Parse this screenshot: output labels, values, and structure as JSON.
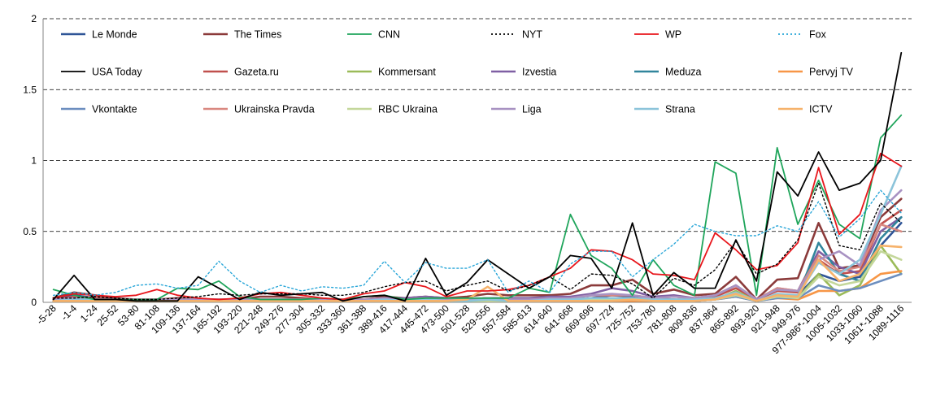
{
  "chart_data": {
    "type": "line",
    "title": "",
    "xlabel": "",
    "ylabel": "",
    "ylim": [
      0,
      2
    ],
    "yticks": [
      "0",
      "0.5",
      "1",
      "1.5",
      "2"
    ],
    "grid": "horizontal dashed",
    "legend_placement": "top",
    "categories": [
      "-5-28",
      "-1-4",
      "1-24",
      "25-52",
      "53-80",
      "81-108",
      "109-136",
      "137-164",
      "165-192",
      "193-220",
      "221-248",
      "249-276",
      "277-304",
      "305-332",
      "333-360",
      "361-388",
      "389-416",
      "417-444",
      "445-472",
      "473-500",
      "501-528",
      "529-556",
      "557-584",
      "585-613",
      "614-640",
      "641-668",
      "669-696",
      "697-724",
      "725-752",
      "753-780",
      "781-808",
      "809-836",
      "837-864",
      "865-892",
      "893-920",
      "921-948",
      "949-976",
      "977-986*-1004",
      "1005-1032",
      "1033-1060",
      "1061*-1088",
      "1089-1116"
    ],
    "series": [
      {
        "name": "Le Monde",
        "color": "#2F5597",
        "dash": "solid",
        "width": 2.6,
        "values": [
          0.02,
          0.05,
          0.03,
          0.01,
          0.01,
          0.01,
          0.02,
          0.01,
          0.01,
          0.01,
          0.02,
          0.02,
          0.01,
          0.01,
          0.01,
          0.01,
          0.02,
          0.01,
          0.02,
          0.01,
          0.01,
          0.02,
          0.01,
          0.01,
          0.01,
          0.02,
          0.03,
          0.05,
          0.04,
          0.02,
          0.02,
          0.01,
          0.02,
          0.05,
          0.01,
          0.05,
          0.05,
          0.2,
          0.15,
          0.18,
          0.4,
          0.56
        ]
      },
      {
        "name": "The Times",
        "color": "#8B3A3A",
        "dash": "solid",
        "width": 2.6,
        "values": [
          0.03,
          0.07,
          0.05,
          0.03,
          0.02,
          0.02,
          0.03,
          0.02,
          0.02,
          0.02,
          0.04,
          0.04,
          0.03,
          0.02,
          0.02,
          0.02,
          0.04,
          0.03,
          0.04,
          0.03,
          0.04,
          0.06,
          0.05,
          0.05,
          0.05,
          0.06,
          0.12,
          0.12,
          0.16,
          0.06,
          0.09,
          0.05,
          0.06,
          0.18,
          0.02,
          0.16,
          0.17,
          0.56,
          0.24,
          0.26,
          0.6,
          0.73
        ]
      },
      {
        "name": "CNN",
        "color": "#1FA55B",
        "dash": "solid",
        "width": 1.8,
        "values": [
          0.09,
          0.05,
          0.02,
          0.02,
          0.02,
          0.02,
          0.1,
          0.09,
          0.15,
          0.04,
          0.02,
          0.02,
          0.02,
          0.03,
          0.02,
          0.04,
          0.05,
          0.02,
          0.03,
          0.03,
          0.03,
          0.03,
          0.03,
          0.1,
          0.07,
          0.62,
          0.33,
          0.24,
          0.05,
          0.3,
          0.12,
          0.05,
          0.99,
          0.91,
          0.05,
          1.09,
          0.55,
          0.86,
          0.55,
          0.45,
          1.16,
          1.32
        ]
      },
      {
        "name": "NYT",
        "color": "#000000",
        "dash": "2,3",
        "width": 1.4,
        "values": [
          0.03,
          0.03,
          0.04,
          0.03,
          0.02,
          0.02,
          0.03,
          0.04,
          0.06,
          0.05,
          0.06,
          0.06,
          0.06,
          0.05,
          0.05,
          0.07,
          0.11,
          0.14,
          0.15,
          0.08,
          0.12,
          0.15,
          0.08,
          0.12,
          0.18,
          0.09,
          0.2,
          0.19,
          0.13,
          0.03,
          0.17,
          0.12,
          0.23,
          0.43,
          0.2,
          0.27,
          0.44,
          0.84,
          0.4,
          0.37,
          0.7,
          0.56
        ]
      },
      {
        "name": "WP",
        "color": "#E8161C",
        "dash": "solid",
        "width": 1.8,
        "values": [
          0.03,
          0.06,
          0.05,
          0.04,
          0.05,
          0.09,
          0.05,
          0.03,
          0.02,
          0.03,
          0.06,
          0.07,
          0.05,
          0.03,
          0.02,
          0.06,
          0.08,
          0.14,
          0.11,
          0.04,
          0.08,
          0.08,
          0.09,
          0.12,
          0.18,
          0.24,
          0.37,
          0.36,
          0.3,
          0.2,
          0.19,
          0.16,
          0.49,
          0.37,
          0.23,
          0.26,
          0.42,
          0.95,
          0.48,
          0.62,
          1.05,
          0.96
        ]
      },
      {
        "name": "Fox",
        "color": "#29A6D8",
        "dash": "2,3",
        "width": 1.4,
        "values": [
          0.05,
          0.07,
          0.05,
          0.07,
          0.12,
          0.13,
          0.1,
          0.12,
          0.29,
          0.15,
          0.07,
          0.12,
          0.08,
          0.11,
          0.1,
          0.12,
          0.29,
          0.14,
          0.28,
          0.24,
          0.24,
          0.3,
          0.07,
          0.15,
          0.07,
          0.27,
          0.36,
          0.36,
          0.18,
          0.3,
          0.41,
          0.55,
          0.5,
          0.47,
          0.47,
          0.54,
          0.5,
          0.71,
          0.46,
          0.59,
          0.79,
          0.63
        ]
      },
      {
        "name": "USA Today",
        "color": "#000000",
        "dash": "solid",
        "width": 1.8,
        "values": [
          0.02,
          0.19,
          0.02,
          0.02,
          0.01,
          0.01,
          0.01,
          0.18,
          0.1,
          0.02,
          0.07,
          0.05,
          0.06,
          0.07,
          0.01,
          0.04,
          0.05,
          0.01,
          0.31,
          0.05,
          0.14,
          0.3,
          0.2,
          0.1,
          0.18,
          0.33,
          0.31,
          0.1,
          0.56,
          0.05,
          0.21,
          0.1,
          0.1,
          0.44,
          0.15,
          0.92,
          0.75,
          1.06,
          0.79,
          0.84,
          1.0,
          1.76
        ]
      },
      {
        "name": "Gazeta.ru",
        "color": "#C0504D",
        "dash": "solid",
        "width": 2.6,
        "values": [
          0.02,
          0.04,
          0.03,
          0.02,
          0.02,
          0.02,
          0.02,
          0.02,
          0.02,
          0.01,
          0.02,
          0.02,
          0.02,
          0.02,
          0.01,
          0.02,
          0.03,
          0.02,
          0.03,
          0.02,
          0.02,
          0.03,
          0.02,
          0.02,
          0.03,
          0.03,
          0.05,
          0.05,
          0.05,
          0.03,
          0.04,
          0.03,
          0.04,
          0.1,
          0.02,
          0.08,
          0.07,
          0.3,
          0.2,
          0.22,
          0.55,
          0.65
        ]
      },
      {
        "name": "Kommersant",
        "color": "#9BBB59",
        "dash": "solid",
        "width": 2.6,
        "values": [
          0.01,
          0.02,
          0.02,
          0.01,
          0.01,
          0.01,
          0.01,
          0.01,
          0.01,
          0.01,
          0.01,
          0.01,
          0.01,
          0.01,
          0.01,
          0.01,
          0.01,
          0.01,
          0.01,
          0.01,
          0.01,
          0.01,
          0.01,
          0.01,
          0.01,
          0.01,
          0.02,
          0.02,
          0.02,
          0.01,
          0.01,
          0.01,
          0.02,
          0.08,
          0.01,
          0.04,
          0.03,
          0.2,
          0.05,
          0.12,
          0.4,
          0.2
        ]
      },
      {
        "name": "Izvestia",
        "color": "#7F5FA3",
        "dash": "solid",
        "width": 2.6,
        "values": [
          0.02,
          0.03,
          0.02,
          0.02,
          0.01,
          0.01,
          0.02,
          0.02,
          0.02,
          0.01,
          0.02,
          0.02,
          0.02,
          0.02,
          0.01,
          0.02,
          0.03,
          0.03,
          0.04,
          0.03,
          0.02,
          0.03,
          0.03,
          0.03,
          0.04,
          0.04,
          0.06,
          0.1,
          0.08,
          0.04,
          0.05,
          0.03,
          0.05,
          0.12,
          0.02,
          0.1,
          0.08,
          0.36,
          0.25,
          0.2,
          0.5,
          0.6
        ]
      },
      {
        "name": "Meduza",
        "color": "#31859C",
        "dash": "solid",
        "width": 2.6,
        "values": [
          0.01,
          0.02,
          0.02,
          0.01,
          0.01,
          0.01,
          0.01,
          0.01,
          0.01,
          0.01,
          0.01,
          0.01,
          0.01,
          0.01,
          0.01,
          0.01,
          0.02,
          0.01,
          0.02,
          0.01,
          0.01,
          0.02,
          0.01,
          0.01,
          0.02,
          0.02,
          0.03,
          0.03,
          0.03,
          0.02,
          0.02,
          0.02,
          0.03,
          0.06,
          0.01,
          0.05,
          0.04,
          0.42,
          0.2,
          0.15,
          0.45,
          0.6
        ]
      },
      {
        "name": "Pervyj TV",
        "color": "#F79646",
        "dash": "solid",
        "width": 2.6,
        "values": [
          0.01,
          0.01,
          0.01,
          0.01,
          0.01,
          0.01,
          0.01,
          0.01,
          0.01,
          0.01,
          0.01,
          0.01,
          0.01,
          0.01,
          0.01,
          0.01,
          0.01,
          0.01,
          0.01,
          0.01,
          0.02,
          0.01,
          0.01,
          0.01,
          0.01,
          0.01,
          0.01,
          0.01,
          0.01,
          0.01,
          0.01,
          0.01,
          0.02,
          0.04,
          0.01,
          0.03,
          0.02,
          0.08,
          0.08,
          0.1,
          0.2,
          0.22
        ]
      },
      {
        "name": "Vkontakte",
        "color": "#6C8EBF",
        "dash": "solid",
        "width": 2.6,
        "values": [
          0.01,
          0.02,
          0.01,
          0.01,
          0.01,
          0.01,
          0.01,
          0.01,
          0.01,
          0.01,
          0.01,
          0.01,
          0.01,
          0.01,
          0.01,
          0.01,
          0.01,
          0.01,
          0.02,
          0.01,
          0.01,
          0.02,
          0.01,
          0.01,
          0.01,
          0.01,
          0.02,
          0.02,
          0.02,
          0.01,
          0.01,
          0.01,
          0.02,
          0.04,
          0.01,
          0.03,
          0.03,
          0.12,
          0.08,
          0.1,
          0.15,
          0.2
        ]
      },
      {
        "name": "Ukrainska Pravda",
        "color": "#D98880",
        "dash": "solid",
        "width": 2.6,
        "values": [
          0.02,
          0.03,
          0.02,
          0.02,
          0.02,
          0.02,
          0.02,
          0.02,
          0.02,
          0.02,
          0.02,
          0.02,
          0.02,
          0.02,
          0.02,
          0.02,
          0.03,
          0.02,
          0.03,
          0.02,
          0.02,
          0.03,
          0.02,
          0.02,
          0.03,
          0.03,
          0.05,
          0.05,
          0.05,
          0.03,
          0.04,
          0.03,
          0.05,
          0.12,
          0.02,
          0.1,
          0.08,
          0.33,
          0.22,
          0.25,
          0.55,
          0.5
        ]
      },
      {
        "name": "RBC Ukraina",
        "color": "#C4D79B",
        "dash": "solid",
        "width": 2.6,
        "values": [
          0.01,
          0.01,
          0.01,
          0.01,
          0.01,
          0.01,
          0.01,
          0.01,
          0.01,
          0.01,
          0.01,
          0.01,
          0.01,
          0.01,
          0.01,
          0.01,
          0.01,
          0.01,
          0.01,
          0.01,
          0.01,
          0.01,
          0.01,
          0.01,
          0.01,
          0.02,
          0.02,
          0.02,
          0.02,
          0.01,
          0.01,
          0.01,
          0.02,
          0.05,
          0.01,
          0.04,
          0.03,
          0.18,
          0.12,
          0.15,
          0.36,
          0.3
        ]
      },
      {
        "name": "Liga",
        "color": "#A892C2",
        "dash": "solid",
        "width": 2.6,
        "values": [
          0.02,
          0.03,
          0.02,
          0.02,
          0.02,
          0.02,
          0.02,
          0.02,
          0.02,
          0.02,
          0.02,
          0.02,
          0.02,
          0.02,
          0.02,
          0.02,
          0.03,
          0.02,
          0.03,
          0.02,
          0.02,
          0.03,
          0.02,
          0.02,
          0.03,
          0.03,
          0.05,
          0.06,
          0.05,
          0.03,
          0.04,
          0.03,
          0.05,
          0.12,
          0.02,
          0.09,
          0.08,
          0.3,
          0.36,
          0.26,
          0.65,
          0.79
        ]
      },
      {
        "name": "Strana",
        "color": "#8CC4DA",
        "dash": "solid",
        "width": 2.6,
        "values": [
          0.01,
          0.02,
          0.02,
          0.01,
          0.01,
          0.01,
          0.01,
          0.01,
          0.01,
          0.01,
          0.01,
          0.01,
          0.01,
          0.01,
          0.01,
          0.01,
          0.02,
          0.01,
          0.02,
          0.01,
          0.01,
          0.02,
          0.01,
          0.01,
          0.02,
          0.02,
          0.03,
          0.03,
          0.03,
          0.02,
          0.02,
          0.02,
          0.03,
          0.07,
          0.01,
          0.06,
          0.05,
          0.28,
          0.2,
          0.3,
          0.62,
          0.96
        ]
      },
      {
        "name": "ICTV",
        "color": "#F6B26B",
        "dash": "solid",
        "width": 2.6,
        "values": [
          0.01,
          0.01,
          0.01,
          0.01,
          0.01,
          0.01,
          0.01,
          0.01,
          0.01,
          0.01,
          0.01,
          0.01,
          0.01,
          0.01,
          0.01,
          0.01,
          0.01,
          0.01,
          0.01,
          0.01,
          0.02,
          0.11,
          0.01,
          0.01,
          0.01,
          0.01,
          0.01,
          0.01,
          0.02,
          0.01,
          0.01,
          0.01,
          0.02,
          0.06,
          0.01,
          0.05,
          0.04,
          0.3,
          0.15,
          0.2,
          0.4,
          0.39
        ]
      }
    ]
  }
}
